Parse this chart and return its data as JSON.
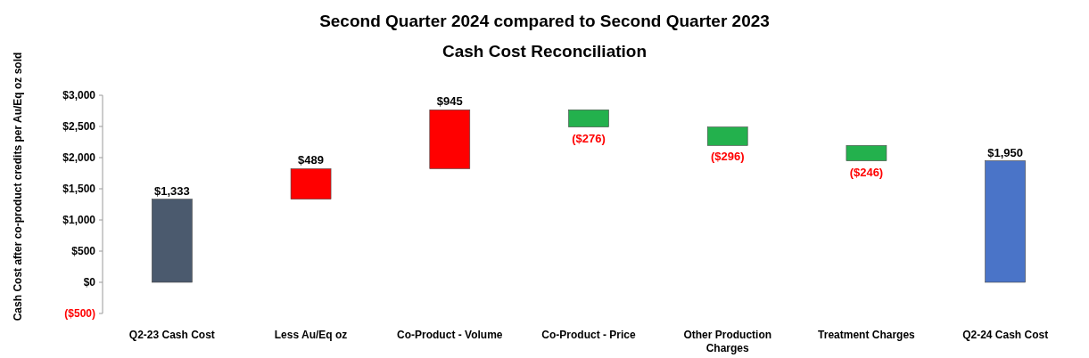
{
  "chart_data": {
    "type": "bar",
    "title": "Second Quarter 2024 compared to Second Quarter 2023\nCash Cost Reconciliation",
    "ylabel": "Cash Cost after co-product credits per Au/Eq oz sold",
    "categories": [
      "Q2-23 Cash Cost",
      "Less Au/Eq oz",
      "Co-Product - Volume",
      "Co-Product - Price",
      "Other Production Charges",
      "Treatment Charges",
      "Q2-24 Cash Cost"
    ],
    "values": [
      1333,
      489,
      945,
      -276,
      -296,
      -246,
      1950
    ],
    "base": [
      0,
      1333,
      1822,
      2767,
      2491,
      2195,
      0
    ],
    "colors": [
      "#4b5a6e",
      "#ff0000",
      "#ff0000",
      "#23b14d",
      "#23b14d",
      "#23b14d",
      "#4a74c8"
    ],
    "value_labels": [
      "$1,333",
      "$489",
      "$945",
      "($276)",
      "($296)",
      "($246)",
      "$1,950"
    ],
    "ylim": [
      -500,
      3000
    ],
    "yticks": [
      {
        "value": -500,
        "label": "($500)"
      },
      {
        "value": 0,
        "label": "$0"
      },
      {
        "value": 500,
        "label": "$500"
      },
      {
        "value": 1000,
        "label": "$1,000"
      },
      {
        "value": 1500,
        "label": "$1,500"
      },
      {
        "value": 2000,
        "label": "$2,000"
      },
      {
        "value": 2500,
        "label": "$2,500"
      },
      {
        "value": 3000,
        "label": "$3,000"
      }
    ],
    "grid": false
  }
}
